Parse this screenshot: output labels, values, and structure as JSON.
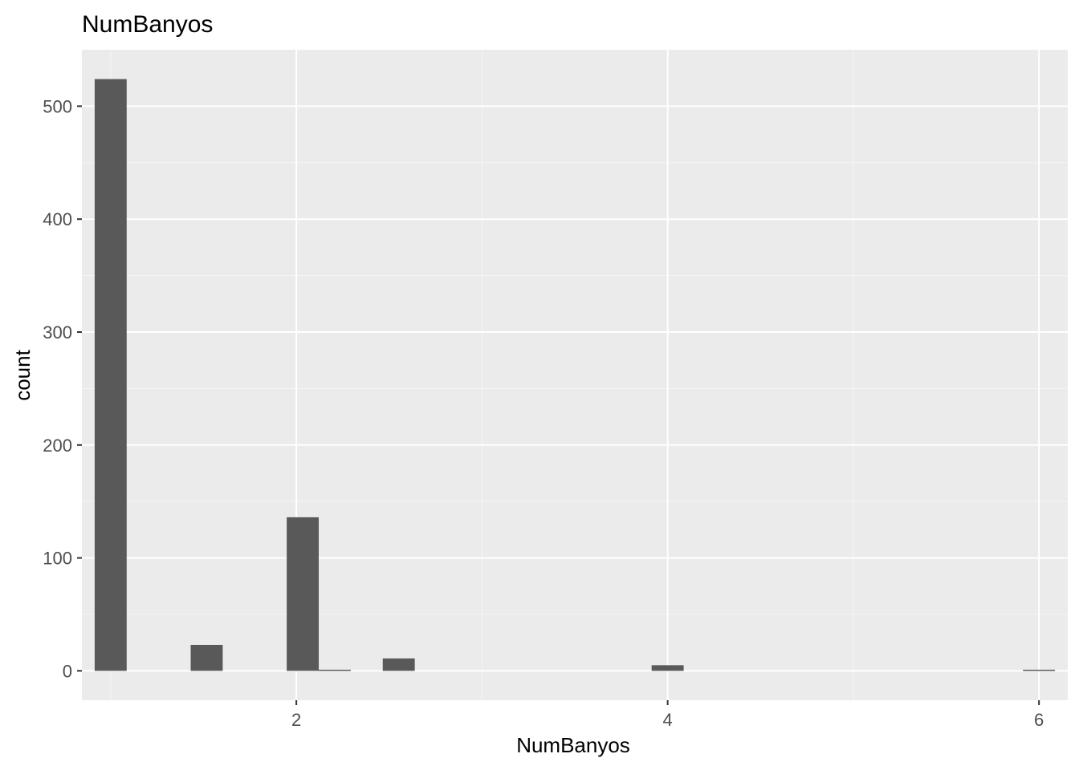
{
  "chart_data": {
    "type": "bar",
    "title": "NumBanyos",
    "xlabel": "NumBanyos",
    "ylabel": "count",
    "xlim": [
      0.845,
      6.155
    ],
    "ylim": [
      -26,
      550
    ],
    "x_ticks": [
      2,
      4,
      6
    ],
    "x_tick_labels": [
      "2",
      "4",
      "6"
    ],
    "x_minor_ticks": [
      1,
      3,
      5
    ],
    "y_ticks": [
      0,
      100,
      200,
      300,
      400,
      500
    ],
    "y_tick_labels": [
      "0",
      "100",
      "200",
      "300",
      "400",
      "500"
    ],
    "y_minor_ticks": [
      50,
      150,
      250,
      350,
      450
    ],
    "bin_width": 0.1724,
    "bins": [
      {
        "x": 1.0,
        "count": 524
      },
      {
        "x": 1.5172,
        "count": 23
      },
      {
        "x": 2.0345,
        "count": 136
      },
      {
        "x": 2.2069,
        "count": 1
      },
      {
        "x": 2.5517,
        "count": 11
      },
      {
        "x": 4.0,
        "count": 5
      },
      {
        "x": 6.0,
        "count": 1
      }
    ],
    "grid": true,
    "colors": {
      "panel_background": "#ebebeb",
      "grid_major": "#ffffff",
      "grid_minor": "#f5f5f5",
      "bar_fill": "#595959"
    }
  }
}
